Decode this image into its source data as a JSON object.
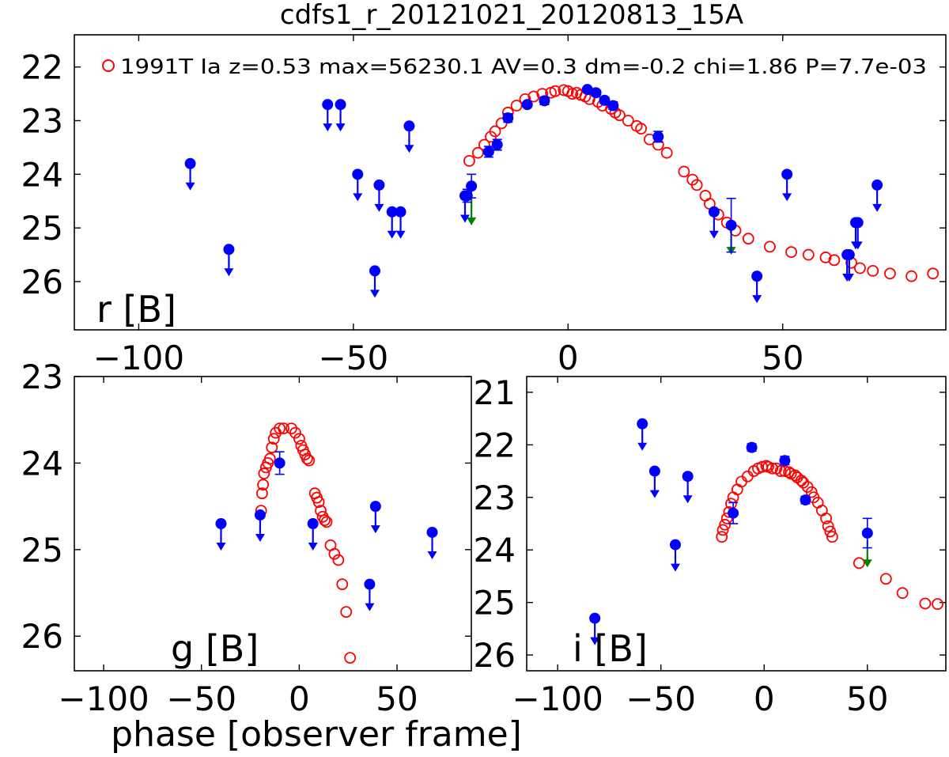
{
  "figure_title": "cdfs1_r_20121021_20120813_15A",
  "x_axis_label": "phase [observer frame]",
  "legend_text": "1991T Ia z=0.53 max=56230.1 AV=0.3 dm=-0.2 chi=1.86 P=7.7e-03",
  "colors": {
    "model": "#ff0000",
    "detection": "#0000ff",
    "limit_green": "#008000",
    "axes": "#000000"
  },
  "chart_data": [
    {
      "type": "scatter",
      "panel": "r",
      "label": "r [B]",
      "xlim": [
        -115,
        88
      ],
      "ylim": [
        26.9,
        21.4
      ],
      "y_inverted": true,
      "xticks": [
        -100,
        -50,
        0,
        50
      ],
      "yticks": [
        22,
        23,
        24,
        25,
        26
      ],
      "legend": "top",
      "model": {
        "x": [
          -23,
          -21,
          -19.5,
          -18,
          -17,
          -15.5,
          -14,
          -12,
          -10,
          -8,
          -6,
          -4,
          -3,
          -1,
          0,
          1,
          2,
          3,
          4,
          5,
          7,
          8,
          10,
          11,
          12,
          14,
          16,
          17,
          19,
          21,
          23,
          27,
          29,
          30,
          32,
          33,
          35,
          37,
          39,
          42,
          47,
          52,
          56,
          60,
          62,
          66,
          68,
          71,
          75,
          80,
          85
        ],
        "y": [
          23.75,
          23.6,
          23.45,
          23.3,
          23.2,
          23.05,
          22.85,
          22.72,
          22.6,
          22.55,
          22.5,
          22.48,
          22.45,
          22.43,
          22.45,
          22.5,
          22.48,
          22.52,
          22.55,
          22.6,
          22.65,
          22.72,
          22.78,
          22.85,
          22.9,
          23.0,
          23.1,
          23.15,
          23.35,
          23.45,
          23.6,
          23.95,
          24.1,
          24.2,
          24.4,
          24.55,
          24.75,
          24.9,
          25.05,
          25.2,
          25.35,
          25.45,
          25.5,
          25.55,
          25.6,
          25.65,
          25.75,
          25.8,
          25.85,
          25.9,
          25.85
        ]
      },
      "detections": {
        "x": [
          -23.5,
          -22.5,
          -18.5,
          -16.5,
          -14,
          -9.5,
          -5.5,
          4.5,
          6.5,
          8.5,
          10.5,
          21,
          38
        ],
        "y": [
          24.4,
          24.22,
          23.58,
          23.45,
          22.95,
          22.7,
          22.63,
          22.42,
          22.48,
          22.62,
          22.72,
          23.3,
          24.95
        ],
        "yerr": [
          0.12,
          0.22,
          0.1,
          0.1,
          0.08,
          0.05,
          0.07,
          0.04,
          0.05,
          0.06,
          0.07,
          0.1,
          0.5
        ]
      },
      "upper_limits": {
        "x": [
          -88,
          -79,
          -56,
          -53,
          -37,
          -49,
          -45,
          -44,
          -41,
          -39,
          -24,
          34,
          44,
          51,
          65,
          67,
          72,
          65.5,
          67.5
        ],
        "y": [
          23.8,
          25.4,
          22.7,
          22.7,
          23.1,
          24.0,
          25.8,
          24.2,
          24.7,
          24.7,
          24.4,
          24.7,
          25.9,
          24.0,
          25.5,
          24.9,
          24.2,
          25.5,
          24.9
        ]
      },
      "green_limits": {
        "x": [
          -22.5,
          38
        ],
        "y": [
          24.45,
          25.0
        ]
      }
    },
    {
      "type": "scatter",
      "panel": "g",
      "label": "g [B]",
      "xlim": [
        -115,
        88
      ],
      "ylim": [
        26.4,
        23.0
      ],
      "y_inverted": true,
      "xticks": [
        -100,
        -50,
        0,
        50
      ],
      "yticks": [
        23,
        24,
        25,
        26
      ],
      "model": {
        "x": [
          -19.5,
          -19,
          -18.5,
          -18,
          -17,
          -16,
          -15,
          -14,
          -13,
          -12,
          -10,
          -8,
          -4,
          -2,
          0,
          1,
          2,
          3,
          4,
          5,
          8,
          9,
          10,
          11,
          12,
          13,
          14,
          16,
          18,
          20,
          22,
          24,
          26
        ],
        "y": [
          24.55,
          24.35,
          24.25,
          24.12,
          24.05,
          24.0,
          23.95,
          23.82,
          23.72,
          23.65,
          23.6,
          23.6,
          23.6,
          23.65,
          23.72,
          23.8,
          23.85,
          23.9,
          23.95,
          23.97,
          24.35,
          24.4,
          24.45,
          24.55,
          24.62,
          24.66,
          24.68,
          24.95,
          25.05,
          25.12,
          25.4,
          25.72,
          26.25
        ]
      },
      "detections": {
        "x": [
          -10
        ],
        "y": [
          24.0
        ],
        "yerr": [
          0.13
        ]
      },
      "upper_limits": {
        "x": [
          -40,
          -20,
          7,
          39,
          68,
          36
        ],
        "y": [
          24.7,
          24.6,
          24.7,
          24.5,
          24.8,
          25.4
        ]
      }
    },
    {
      "type": "scatter",
      "panel": "i",
      "label": "i [B]",
      "xlim": [
        -115,
        88
      ],
      "ylim": [
        26.3,
        20.7
      ],
      "y_inverted": true,
      "xticks": [
        -100,
        -50,
        0,
        50
      ],
      "yticks": [
        21,
        22,
        23,
        24,
        25,
        26
      ],
      "model": {
        "x": [
          -20.5,
          -20,
          -19,
          -18,
          -17,
          -16,
          -15,
          -13,
          -11,
          -8,
          -5,
          -3,
          -1,
          1,
          2,
          4,
          6,
          8,
          10,
          12,
          13,
          15,
          16,
          18,
          19,
          21,
          23,
          24,
          26,
          28,
          30,
          31,
          32,
          33,
          46,
          59,
          67,
          78,
          84
        ],
        "y": [
          23.75,
          23.62,
          23.52,
          23.4,
          23.28,
          23.12,
          23.0,
          22.85,
          22.7,
          22.6,
          22.5,
          22.45,
          22.42,
          22.4,
          22.42,
          22.45,
          22.45,
          22.5,
          22.5,
          22.52,
          22.55,
          22.58,
          22.62,
          22.68,
          22.72,
          22.8,
          22.9,
          23.0,
          23.1,
          23.25,
          23.4,
          23.55,
          23.65,
          23.75,
          24.25,
          24.55,
          24.82,
          25.02,
          25.03
        ]
      },
      "detections": {
        "x": [
          -15,
          -6,
          10,
          20,
          50
        ],
        "y": [
          23.3,
          22.05,
          22.3,
          23.05,
          23.68
        ],
        "yerr": [
          0.2,
          0.07,
          0.08,
          0.07,
          0.28
        ]
      },
      "upper_limits": {
        "x": [
          -82,
          -59,
          -53,
          -43,
          -37
        ],
        "y": [
          25.3,
          21.6,
          22.5,
          23.9,
          22.6
        ]
      },
      "green_limits": {
        "x": [
          50
        ],
        "y": [
          23.82
        ]
      }
    }
  ]
}
